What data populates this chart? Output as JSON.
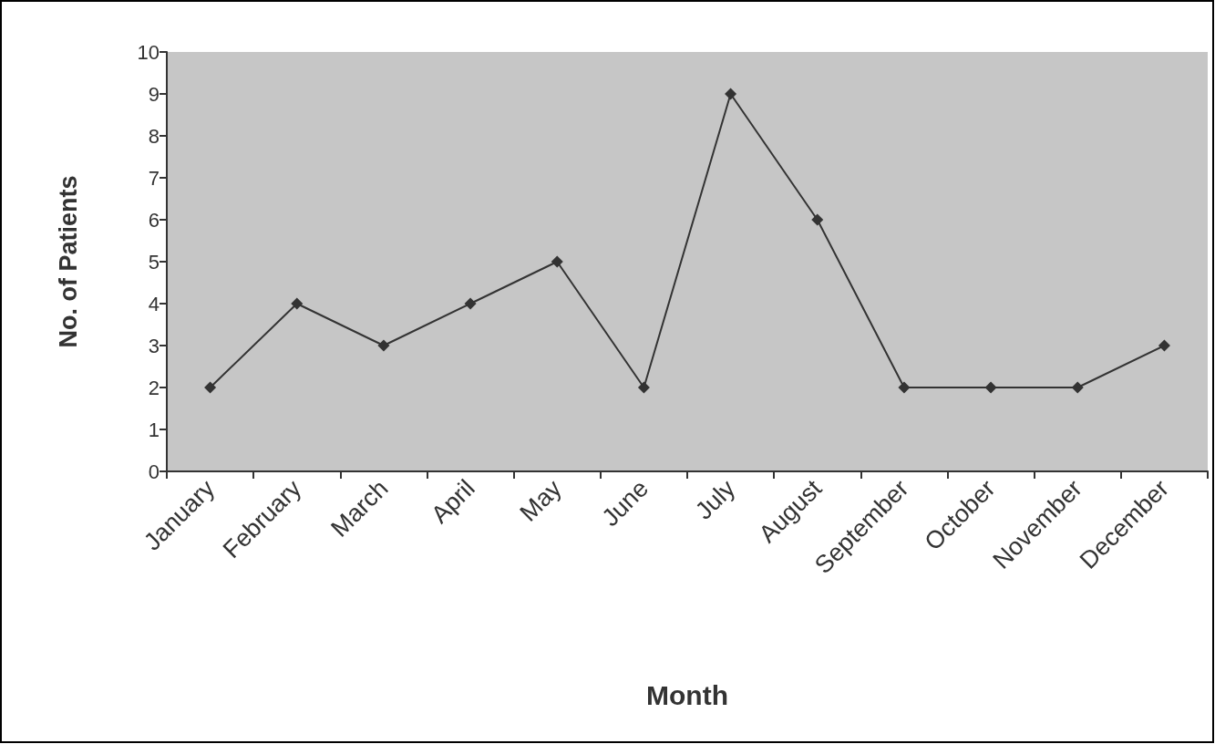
{
  "chart_data": {
    "type": "line",
    "xlabel": "Month",
    "ylabel": "No. of Patients",
    "categories": [
      "January",
      "February",
      "March",
      "April",
      "May",
      "June",
      "July",
      "August",
      "September",
      "October",
      "November",
      "December"
    ],
    "series": [
      {
        "color": "#333333",
        "values": [
          2,
          4,
          3,
          4,
          5,
          2,
          9,
          6,
          2,
          2,
          2,
          3
        ]
      }
    ],
    "ylim": [
      0,
      10
    ],
    "yticks": [
      0,
      1,
      2,
      3,
      4,
      5,
      6,
      7,
      8,
      9,
      10
    ],
    "grid": false,
    "marker": "diamond",
    "line_style": "solid"
  }
}
